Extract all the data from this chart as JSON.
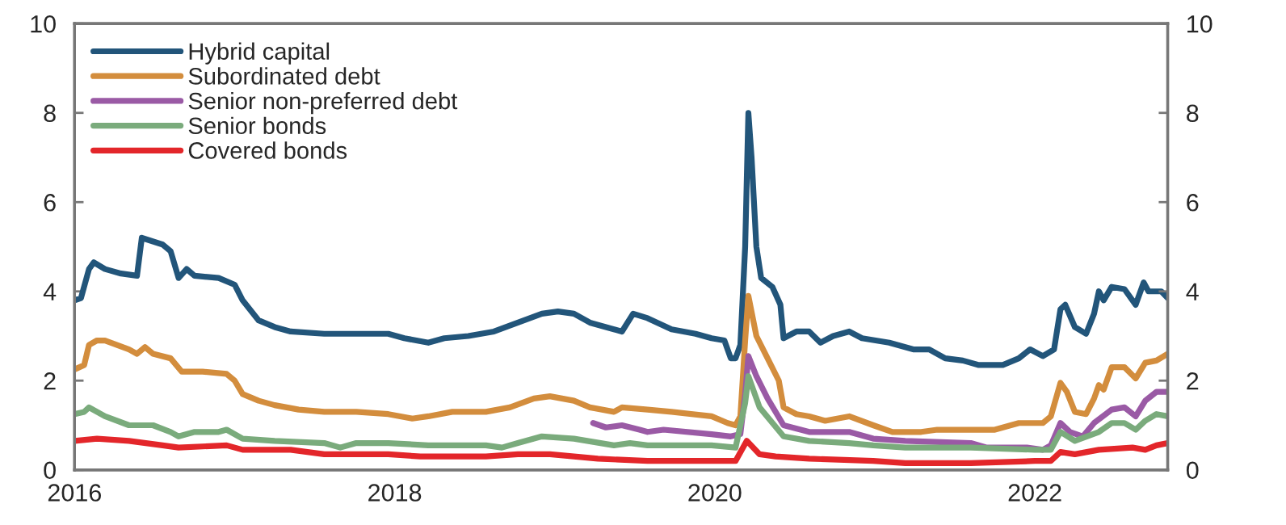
{
  "chart_data": {
    "type": "line",
    "xlim": [
      2016,
      2022.83
    ],
    "xticks": [
      2016,
      2018,
      2020,
      2022
    ],
    "ylim": [
      0,
      10
    ],
    "yticks": [
      0,
      2,
      4,
      6,
      8,
      10
    ],
    "y2lim": [
      0,
      10
    ],
    "y2ticks": [
      0,
      2,
      4,
      6,
      8,
      10
    ],
    "legend": "top left",
    "grid": false,
    "marker": "none",
    "line_style": "solid",
    "series": [
      {
        "name": "Hybrid capital",
        "color": "#22557a",
        "x": [
          2016,
          2016.04,
          2016.09,
          2016.12,
          2016.19,
          2016.29,
          2016.39,
          2016.42,
          2016.55,
          2016.6,
          2016.65,
          2016.7,
          2016.75,
          2016.9,
          2017.0,
          2017.05,
          2017.15,
          2017.25,
          2017.35,
          2017.56,
          2017.76,
          2017.96,
          2018.06,
          2018.21,
          2018.31,
          2018.46,
          2018.62,
          2018.77,
          2018.92,
          2019.02,
          2019.12,
          2019.22,
          2019.37,
          2019.42,
          2019.49,
          2019.58,
          2019.73,
          2019.88,
          2019.98,
          2020.06,
          2020.1,
          2020.13,
          2020.16,
          2020.19,
          2020.21,
          2020.23,
          2020.26,
          2020.29,
          2020.36,
          2020.41,
          2020.43,
          2020.51,
          2020.59,
          2020.66,
          2020.74,
          2020.84,
          2020.92,
          2021.09,
          2021.24,
          2021.34,
          2021.44,
          2021.55,
          2021.65,
          2021.8,
          2021.9,
          2021.97,
          2022.05,
          2022.12,
          2022.16,
          2022.19,
          2022.25,
          2022.32,
          2022.37,
          2022.4,
          2022.43,
          2022.48,
          2022.56,
          2022.63,
          2022.68,
          2022.71,
          2022.79,
          2022.83
        ],
        "values": [
          3.8,
          3.85,
          4.5,
          4.65,
          4.5,
          4.4,
          4.35,
          5.2,
          5.05,
          4.9,
          4.3,
          4.5,
          4.35,
          4.3,
          4.15,
          3.8,
          3.35,
          3.2,
          3.1,
          3.05,
          3.05,
          3.05,
          2.95,
          2.85,
          2.95,
          3.0,
          3.1,
          3.3,
          3.5,
          3.55,
          3.5,
          3.3,
          3.15,
          3.1,
          3.5,
          3.4,
          3.15,
          3.05,
          2.95,
          2.9,
          2.5,
          2.5,
          2.8,
          5.0,
          8.0,
          7.0,
          5.0,
          4.3,
          4.1,
          3.7,
          2.95,
          3.1,
          3.1,
          2.85,
          3.0,
          3.1,
          2.95,
          2.85,
          2.7,
          2.7,
          2.5,
          2.45,
          2.35,
          2.35,
          2.5,
          2.7,
          2.55,
          2.7,
          3.6,
          3.7,
          3.2,
          3.05,
          3.5,
          4.0,
          3.8,
          4.1,
          4.05,
          3.7,
          4.2,
          4.0,
          4.0,
          3.85
        ]
      },
      {
        "name": "Subordinated debt",
        "color": "#d38d3d",
        "x": [
          2016,
          2016.06,
          2016.09,
          2016.14,
          2016.19,
          2016.34,
          2016.39,
          2016.44,
          2016.49,
          2016.6,
          2016.67,
          2016.8,
          2016.95,
          2017.0,
          2017.05,
          2017.15,
          2017.25,
          2017.4,
          2017.56,
          2017.76,
          2017.96,
          2018.11,
          2018.21,
          2018.36,
          2018.57,
          2018.72,
          2018.87,
          2018.97,
          2019.12,
          2019.22,
          2019.37,
          2019.42,
          2019.58,
          2019.73,
          2019.98,
          2020.08,
          2020.13,
          2020.16,
          2020.19,
          2020.21,
          2020.26,
          2020.33,
          2020.4,
          2020.43,
          2020.51,
          2020.59,
          2020.69,
          2020.84,
          2020.99,
          2021.11,
          2021.29,
          2021.39,
          2021.6,
          2021.75,
          2021.9,
          2022.05,
          2022.1,
          2022.16,
          2022.2,
          2022.25,
          2022.32,
          2022.37,
          2022.4,
          2022.43,
          2022.48,
          2022.56,
          2022.63,
          2022.69,
          2022.76,
          2022.83
        ],
        "values": [
          2.25,
          2.35,
          2.8,
          2.9,
          2.9,
          2.7,
          2.6,
          2.75,
          2.6,
          2.5,
          2.2,
          2.2,
          2.15,
          2.0,
          1.7,
          1.55,
          1.45,
          1.35,
          1.3,
          1.3,
          1.25,
          1.15,
          1.2,
          1.3,
          1.3,
          1.4,
          1.6,
          1.65,
          1.55,
          1.4,
          1.3,
          1.4,
          1.35,
          1.3,
          1.2,
          1.05,
          1.0,
          1.2,
          2.9,
          3.9,
          3.0,
          2.5,
          2.0,
          1.4,
          1.25,
          1.2,
          1.1,
          1.2,
          1.0,
          0.85,
          0.85,
          0.9,
          0.9,
          0.9,
          1.05,
          1.05,
          1.2,
          1.95,
          1.75,
          1.3,
          1.25,
          1.6,
          1.9,
          1.8,
          2.3,
          2.3,
          2.05,
          2.4,
          2.45,
          2.6
        ]
      },
      {
        "name": "Senior non-preferred debt",
        "color": "#9a5aa5",
        "x": [
          2019.24,
          2019.32,
          2019.42,
          2019.53,
          2019.58,
          2019.68,
          2019.98,
          2020.1,
          2020.16,
          2020.19,
          2020.21,
          2020.26,
          2020.33,
          2020.43,
          2020.59,
          2020.84,
          2020.99,
          2021.19,
          2021.6,
          2021.7,
          2021.95,
          2022.05,
          2022.1,
          2022.16,
          2022.22,
          2022.3,
          2022.37,
          2022.48,
          2022.56,
          2022.63,
          2022.69,
          2022.76,
          2022.83
        ],
        "values": [
          1.05,
          0.95,
          1.0,
          0.9,
          0.85,
          0.9,
          0.8,
          0.75,
          0.8,
          1.7,
          2.55,
          2.1,
          1.6,
          1.0,
          0.85,
          0.85,
          0.7,
          0.65,
          0.6,
          0.5,
          0.5,
          0.45,
          0.55,
          1.05,
          0.85,
          0.75,
          1.05,
          1.35,
          1.4,
          1.2,
          1.55,
          1.75,
          1.75
        ]
      },
      {
        "name": "Senior bonds",
        "color": "#7aab7c",
        "x": [
          2016,
          2016.06,
          2016.09,
          2016.19,
          2016.34,
          2016.49,
          2016.6,
          2016.65,
          2016.75,
          2016.9,
          2016.95,
          2017.05,
          2017.25,
          2017.56,
          2017.66,
          2017.76,
          2017.96,
          2018.21,
          2018.57,
          2018.67,
          2018.77,
          2018.92,
          2019.12,
          2019.37,
          2019.47,
          2019.58,
          2019.98,
          2020.13,
          2020.19,
          2020.21,
          2020.28,
          2020.43,
          2020.59,
          2020.84,
          2020.99,
          2021.19,
          2021.6,
          2022.0,
          2022.1,
          2022.16,
          2022.25,
          2022.4,
          2022.48,
          2022.56,
          2022.63,
          2022.69,
          2022.76,
          2022.83
        ],
        "values": [
          1.25,
          1.3,
          1.4,
          1.2,
          1.0,
          1.0,
          0.85,
          0.75,
          0.85,
          0.85,
          0.9,
          0.7,
          0.65,
          0.6,
          0.5,
          0.6,
          0.6,
          0.55,
          0.55,
          0.5,
          0.6,
          0.75,
          0.7,
          0.55,
          0.6,
          0.55,
          0.55,
          0.5,
          1.5,
          2.1,
          1.4,
          0.75,
          0.65,
          0.6,
          0.55,
          0.5,
          0.5,
          0.45,
          0.45,
          0.85,
          0.65,
          0.85,
          1.05,
          1.05,
          0.9,
          1.1,
          1.25,
          1.2
        ]
      },
      {
        "name": "Covered bonds",
        "color": "#e3262a",
        "x": [
          2016,
          2016.14,
          2016.34,
          2016.55,
          2016.65,
          2016.95,
          2017.05,
          2017.35,
          2017.56,
          2017.96,
          2018.16,
          2018.57,
          2018.77,
          2018.97,
          2019.27,
          2019.58,
          2019.98,
          2020.13,
          2020.2,
          2020.28,
          2020.38,
          2020.59,
          2020.99,
          2021.19,
          2021.6,
          2022.0,
          2022.1,
          2022.16,
          2022.25,
          2022.4,
          2022.61,
          2022.69,
          2022.76,
          2022.83
        ],
        "values": [
          0.65,
          0.7,
          0.65,
          0.55,
          0.5,
          0.55,
          0.45,
          0.45,
          0.35,
          0.35,
          0.3,
          0.3,
          0.35,
          0.35,
          0.25,
          0.2,
          0.2,
          0.2,
          0.65,
          0.35,
          0.3,
          0.25,
          0.2,
          0.15,
          0.15,
          0.2,
          0.2,
          0.4,
          0.35,
          0.45,
          0.5,
          0.45,
          0.55,
          0.6
        ]
      }
    ]
  }
}
